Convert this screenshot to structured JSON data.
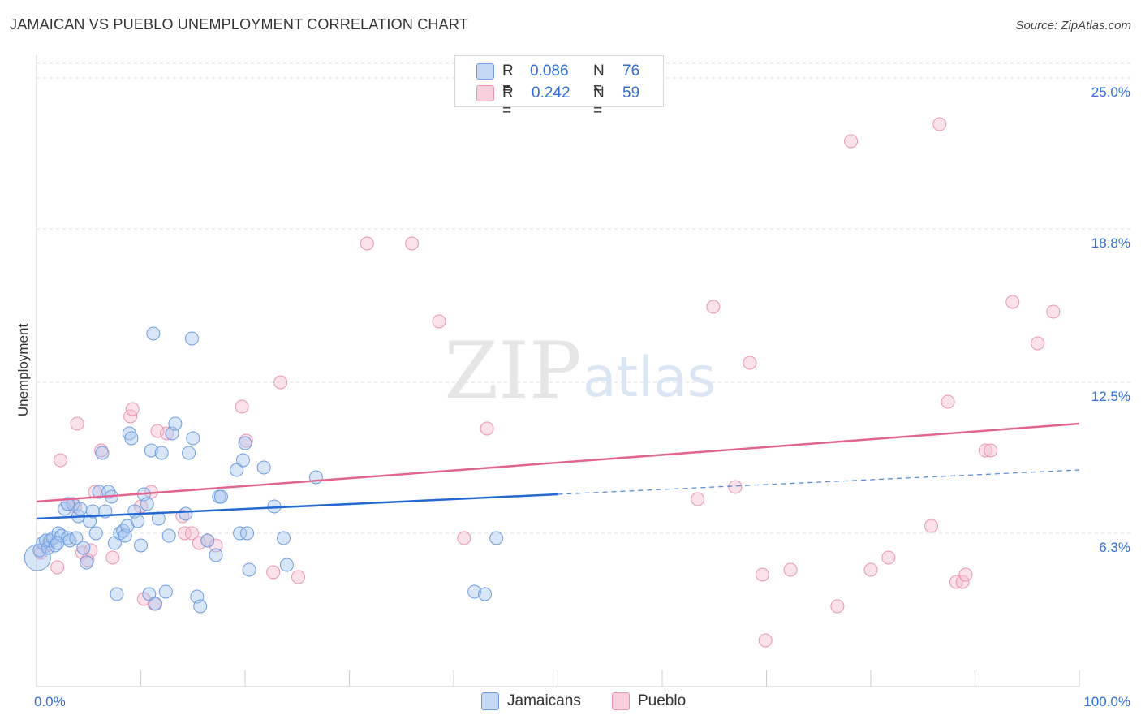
{
  "title": "JAMAICAN VS PUEBLO UNEMPLOYMENT CORRELATION CHART",
  "source": "Source: ZipAtlas.com",
  "watermark": {
    "zip": "ZIP",
    "atlas": "atlas"
  },
  "colors": {
    "jamaicans_fill": "#a9c8f0",
    "jamaicans_stroke": "#6d9de0",
    "jamaicans_line": "#2369d1",
    "pueblo_fill": "#f6bdd0",
    "pueblo_stroke": "#e994b2",
    "pueblo_line": "#e2658f",
    "tick_label": "#2f6fd6",
    "grid": "#dddddd"
  },
  "legend": {
    "rows": [
      {
        "r_label": "R = ",
        "r_value": "0.086",
        "n_label": "N = ",
        "n_value": "76"
      },
      {
        "r_label": "R = ",
        "r_value": "0.242",
        "n_label": "N = ",
        "n_value": "59"
      }
    ]
  },
  "bottom_legend": {
    "jamaicans": "Jamaicans",
    "pueblo": "Pueblo"
  },
  "chart_data": {
    "type": "scatter",
    "title": "JAMAICAN VS PUEBLO UNEMPLOYMENT CORRELATION CHART",
    "xlabel": "",
    "ylabel": "Unemployment",
    "xlim": [
      0,
      100
    ],
    "ylim": [
      0,
      25.6
    ],
    "x_tick_labels": [
      {
        "value": 0,
        "label": "0.0%"
      },
      {
        "value": 100,
        "label": "100.0%"
      }
    ],
    "x_minor_ticks": [
      10,
      20,
      30,
      40,
      50,
      60,
      70,
      80,
      90,
      100
    ],
    "y_ticks": [
      {
        "value": 6.3,
        "label": "6.3%"
      },
      {
        "value": 12.5,
        "label": "12.5%"
      },
      {
        "value": 18.8,
        "label": "18.8%"
      },
      {
        "value": 25.0,
        "label": "25.0%"
      }
    ],
    "grid": true,
    "series": [
      {
        "name": "Jamaicans",
        "r": 0.086,
        "n": 76,
        "trend": {
          "x0": 0,
          "y0": 6.9,
          "x1": 50,
          "y1": 7.9,
          "dashed_to_x": 100,
          "dashed_to_y": 8.9
        },
        "points": [
          {
            "x": 0.1,
            "y": 5.3,
            "big": true
          },
          {
            "x": 0.3,
            "y": 5.6
          },
          {
            "x": 0.6,
            "y": 5.9
          },
          {
            "x": 0.9,
            "y": 6.0
          },
          {
            "x": 1.1,
            "y": 5.7
          },
          {
            "x": 1.3,
            "y": 6.0
          },
          {
            "x": 1.6,
            "y": 6.1
          },
          {
            "x": 1.8,
            "y": 5.8
          },
          {
            "x": 2.1,
            "y": 6.3
          },
          {
            "x": 2.4,
            "y": 6.2
          },
          {
            "x": 2.7,
            "y": 7.3
          },
          {
            "x": 3.0,
            "y": 6.1
          },
          {
            "x": 3.2,
            "y": 6.0
          },
          {
            "x": 3.5,
            "y": 7.5
          },
          {
            "x": 3.8,
            "y": 6.1
          },
          {
            "x": 4.0,
            "y": 7.0
          },
          {
            "x": 4.2,
            "y": 7.3
          },
          {
            "x": 4.5,
            "y": 5.7
          },
          {
            "x": 4.8,
            "y": 5.1
          },
          {
            "x": 5.1,
            "y": 6.8
          },
          {
            "x": 5.4,
            "y": 7.2
          },
          {
            "x": 5.7,
            "y": 6.3
          },
          {
            "x": 6.0,
            "y": 8.0
          },
          {
            "x": 6.3,
            "y": 9.6
          },
          {
            "x": 6.6,
            "y": 7.2
          },
          {
            "x": 6.9,
            "y": 8.0
          },
          {
            "x": 7.2,
            "y": 7.8
          },
          {
            "x": 7.5,
            "y": 5.9
          },
          {
            "x": 7.7,
            "y": 3.8
          },
          {
            "x": 8.0,
            "y": 6.3
          },
          {
            "x": 8.3,
            "y": 6.4
          },
          {
            "x": 8.5,
            "y": 6.2
          },
          {
            "x": 8.7,
            "y": 6.6
          },
          {
            "x": 8.9,
            "y": 10.4
          },
          {
            "x": 9.1,
            "y": 10.2
          },
          {
            "x": 9.4,
            "y": 7.2
          },
          {
            "x": 9.7,
            "y": 6.8
          },
          {
            "x": 10.0,
            "y": 5.8
          },
          {
            "x": 10.3,
            "y": 7.9
          },
          {
            "x": 10.6,
            "y": 7.5
          },
          {
            "x": 10.8,
            "y": 3.8
          },
          {
            "x": 11.0,
            "y": 9.7
          },
          {
            "x": 11.2,
            "y": 14.5
          },
          {
            "x": 11.4,
            "y": 3.4
          },
          {
            "x": 11.7,
            "y": 6.9
          },
          {
            "x": 12.0,
            "y": 9.6
          },
          {
            "x": 12.4,
            "y": 3.9
          },
          {
            "x": 12.7,
            "y": 6.2
          },
          {
            "x": 13.0,
            "y": 10.4
          },
          {
            "x": 13.3,
            "y": 10.8
          },
          {
            "x": 14.3,
            "y": 7.1
          },
          {
            "x": 14.6,
            "y": 9.6
          },
          {
            "x": 14.9,
            "y": 14.3
          },
          {
            "x": 15.0,
            "y": 10.2
          },
          {
            "x": 15.4,
            "y": 3.7
          },
          {
            "x": 15.7,
            "y": 3.3
          },
          {
            "x": 16.4,
            "y": 6.0
          },
          {
            "x": 17.2,
            "y": 5.4
          },
          {
            "x": 17.5,
            "y": 7.8
          },
          {
            "x": 17.7,
            "y": 7.8
          },
          {
            "x": 19.2,
            "y": 8.9
          },
          {
            "x": 19.5,
            "y": 6.3
          },
          {
            "x": 19.8,
            "y": 9.3
          },
          {
            "x": 20.0,
            "y": 10.0
          },
          {
            "x": 20.2,
            "y": 6.3
          },
          {
            "x": 20.4,
            "y": 4.8
          },
          {
            "x": 21.8,
            "y": 9.0
          },
          {
            "x": 22.8,
            "y": 7.4
          },
          {
            "x": 23.7,
            "y": 6.1
          },
          {
            "x": 24.0,
            "y": 5.0
          },
          {
            "x": 26.8,
            "y": 8.6
          },
          {
            "x": 42.0,
            "y": 3.9
          },
          {
            "x": 43.0,
            "y": 3.8
          },
          {
            "x": 44.1,
            "y": 6.1
          },
          {
            "x": 3.0,
            "y": 7.5
          },
          {
            "x": 2.0,
            "y": 5.9
          }
        ]
      },
      {
        "name": "Pueblo",
        "r": 0.242,
        "n": 59,
        "trend": {
          "x0": 0,
          "y0": 7.6,
          "x1": 100,
          "y1": 10.8
        },
        "points": [
          {
            "x": 0.4,
            "y": 5.5
          },
          {
            "x": 1.0,
            "y": 5.8
          },
          {
            "x": 2.0,
            "y": 4.9
          },
          {
            "x": 2.3,
            "y": 9.3
          },
          {
            "x": 3.0,
            "y": 7.5
          },
          {
            "x": 3.7,
            "y": 7.4
          },
          {
            "x": 3.9,
            "y": 10.8
          },
          {
            "x": 4.4,
            "y": 5.5
          },
          {
            "x": 4.9,
            "y": 5.2
          },
          {
            "x": 5.2,
            "y": 5.6
          },
          {
            "x": 5.6,
            "y": 8.0
          },
          {
            "x": 6.2,
            "y": 9.7
          },
          {
            "x": 7.3,
            "y": 5.3
          },
          {
            "x": 9.0,
            "y": 11.1
          },
          {
            "x": 9.2,
            "y": 11.4
          },
          {
            "x": 10.0,
            "y": 7.4
          },
          {
            "x": 10.3,
            "y": 3.6
          },
          {
            "x": 11.0,
            "y": 8.0
          },
          {
            "x": 11.3,
            "y": 3.4
          },
          {
            "x": 11.6,
            "y": 10.5
          },
          {
            "x": 12.5,
            "y": 10.4
          },
          {
            "x": 14.0,
            "y": 7.0
          },
          {
            "x": 14.2,
            "y": 6.3
          },
          {
            "x": 14.9,
            "y": 6.3
          },
          {
            "x": 15.6,
            "y": 5.9
          },
          {
            "x": 16.4,
            "y": 6.0
          },
          {
            "x": 17.2,
            "y": 5.8
          },
          {
            "x": 19.7,
            "y": 11.5
          },
          {
            "x": 20.1,
            "y": 10.1
          },
          {
            "x": 22.7,
            "y": 4.7
          },
          {
            "x": 23.4,
            "y": 12.5
          },
          {
            "x": 25.1,
            "y": 4.5
          },
          {
            "x": 31.7,
            "y": 18.2
          },
          {
            "x": 36.0,
            "y": 18.2
          },
          {
            "x": 38.6,
            "y": 15.0
          },
          {
            "x": 41.0,
            "y": 6.1
          },
          {
            "x": 43.2,
            "y": 10.6
          },
          {
            "x": 63.4,
            "y": 7.7
          },
          {
            "x": 64.9,
            "y": 15.6
          },
          {
            "x": 67.0,
            "y": 8.2
          },
          {
            "x": 68.4,
            "y": 13.3
          },
          {
            "x": 69.6,
            "y": 4.6
          },
          {
            "x": 69.9,
            "y": 1.9
          },
          {
            "x": 72.3,
            "y": 4.8
          },
          {
            "x": 76.8,
            "y": 3.3
          },
          {
            "x": 78.1,
            "y": 22.4
          },
          {
            "x": 80.0,
            "y": 4.8
          },
          {
            "x": 81.7,
            "y": 5.3
          },
          {
            "x": 85.8,
            "y": 6.6
          },
          {
            "x": 86.6,
            "y": 23.1
          },
          {
            "x": 87.4,
            "y": 11.7
          },
          {
            "x": 88.2,
            "y": 4.3
          },
          {
            "x": 88.8,
            "y": 4.3
          },
          {
            "x": 89.1,
            "y": 4.6
          },
          {
            "x": 91.0,
            "y": 9.7
          },
          {
            "x": 91.5,
            "y": 9.7
          },
          {
            "x": 93.6,
            "y": 15.8
          },
          {
            "x": 96.0,
            "y": 14.1
          },
          {
            "x": 97.5,
            "y": 15.4
          }
        ]
      }
    ]
  }
}
